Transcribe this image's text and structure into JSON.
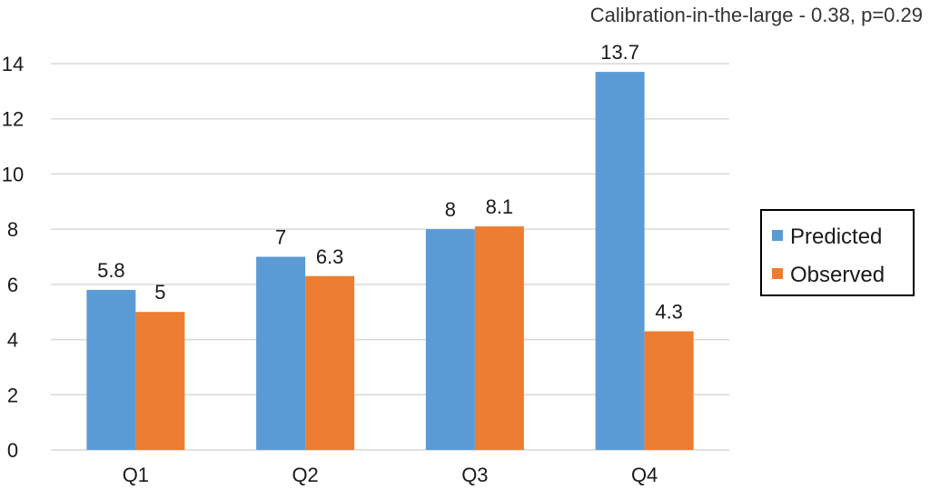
{
  "chart_data": {
    "type": "bar",
    "title": "",
    "xlabel": "",
    "ylabel": "",
    "annotation": "Calibration-in-the-large - 0.38, p=0.29",
    "categories": [
      "Q1",
      "Q2",
      "Q3",
      "Q4"
    ],
    "series": [
      {
        "name": "Predicted",
        "values": [
          5.8,
          7,
          8,
          13.7
        ],
        "labels": [
          "5.8",
          "7",
          "8",
          "13.7"
        ],
        "color": "#5B9BD5"
      },
      {
        "name": "Observed",
        "values": [
          5,
          6.3,
          8.1,
          4.3
        ],
        "labels": [
          "5",
          "6.3",
          "8.1",
          "4.3"
        ],
        "color": "#ED7D31"
      }
    ],
    "ylim": [
      0,
      14
    ],
    "yticks": [
      0,
      2,
      4,
      6,
      8,
      10,
      12,
      14
    ],
    "grid": true,
    "legend_position": "right"
  }
}
